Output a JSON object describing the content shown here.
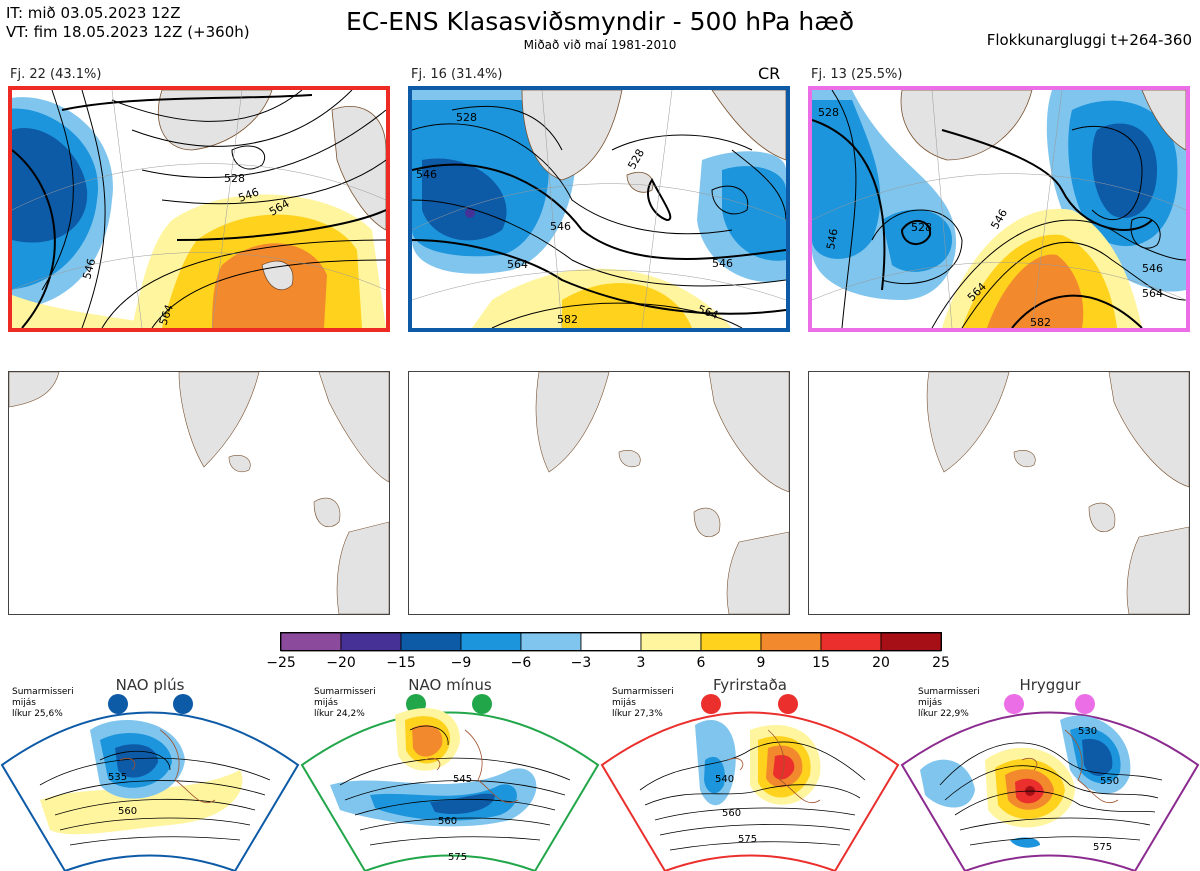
{
  "header": {
    "it_line": "IT: mið 03.05.2023 12Z",
    "vt_line": "VT: fim 18.05.2023 12Z  (+360h)",
    "title": "EC-ENS Klasasviðsmyndir - 500 hPa hæð",
    "subtitle": "Miðað við maí 1981-2010",
    "window": "Flokkunargluggi t+264-360"
  },
  "clusters": [
    {
      "label": "Fj. 22 (43.1%)",
      "border_color": "#ee2a24",
      "contours": [
        "546",
        "528",
        "546",
        "564",
        "564"
      ]
    },
    {
      "label": "Fj. 16 (31.4%)",
      "border_color": "#0d5aa7",
      "extra": "CR",
      "contours": [
        "528",
        "546",
        "528",
        "546",
        "564",
        "546",
        "582",
        "564"
      ]
    },
    {
      "label": "Fj. 13 (25.5%)",
      "border_color": "#ec6ee6",
      "contours": [
        "528",
        "528",
        "546",
        "546",
        "564",
        "546",
        "564",
        "582"
      ]
    }
  ],
  "colorbar": {
    "colors": [
      "#8c4a9c",
      "#463296",
      "#0d5aa7",
      "#1c95dc",
      "#80c5ee",
      "#ffffff",
      "#fff59e",
      "#ffd21e",
      "#f3892d",
      "#ea2f2c",
      "#a50f15"
    ],
    "ticks": [
      "−25",
      "−20",
      "−15",
      "−9",
      "−6",
      "−3",
      "3",
      "6",
      "9",
      "15",
      "20",
      "25"
    ]
  },
  "regimes": [
    {
      "name": "NAO plús",
      "note_lines": [
        "Sumarmisseri",
        "mijás",
        "líkur 25,6%"
      ],
      "color": "#0d5aa7",
      "contours": [
        "535",
        "560"
      ]
    },
    {
      "name": "NAO mínus",
      "note_lines": [
        "Sumarmisseri",
        "mijás",
        "líkur 24,2%"
      ],
      "color": "#22a64a",
      "contours": [
        "545",
        "560",
        "575"
      ]
    },
    {
      "name": "Fyrirstaða",
      "note_lines": [
        "Sumarmisseri",
        "mijás",
        "líkur 27,3%"
      ],
      "color": "#ea2f2c",
      "contours": [
        "540",
        "560",
        "575"
      ]
    },
    {
      "name": "Hryggur",
      "note_lines": [
        "Sumarmisseri",
        "mijás",
        "líkur 22,9%"
      ],
      "color": "#8b2a8f",
      "dot_color": "#ec6ee6",
      "contours": [
        "530",
        "550",
        "575"
      ]
    }
  ]
}
